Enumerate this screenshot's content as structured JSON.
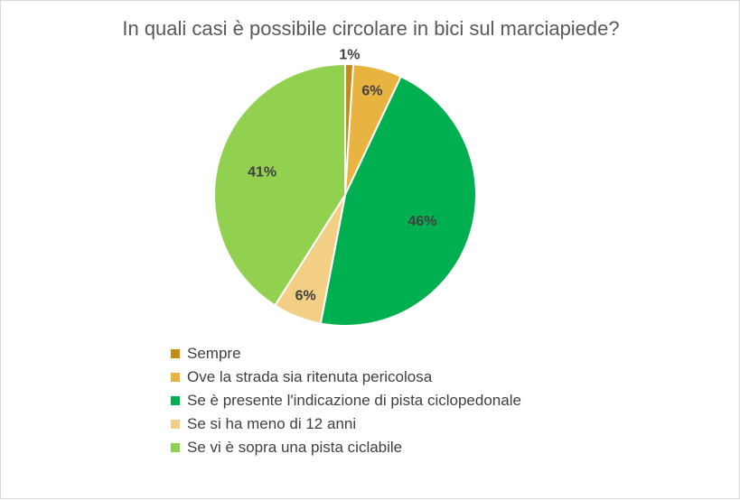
{
  "chart_data": {
    "type": "pie",
    "title": "In quali casi è possibile circolare in bici sul marciapiede?",
    "slices": [
      {
        "label": "Sempre",
        "value": 1,
        "display": "1%",
        "color": "#c68a17"
      },
      {
        "label": "Ove la strada sia ritenuta pericolosa",
        "value": 6,
        "display": "6%",
        "color": "#e8b33f"
      },
      {
        "label": "Se è presente l'indicazione di pista ciclopedonale",
        "value": 46,
        "display": "46%",
        "color": "#00b050"
      },
      {
        "label": "Se si ha meno di 12 anni",
        "value": 6,
        "display": "6%",
        "color": "#f2cf85"
      },
      {
        "label": "Se vi è sopra una pista ciclabile",
        "value": 41,
        "display": "41%",
        "color": "#92d050"
      }
    ],
    "legend_position": "bottom"
  }
}
